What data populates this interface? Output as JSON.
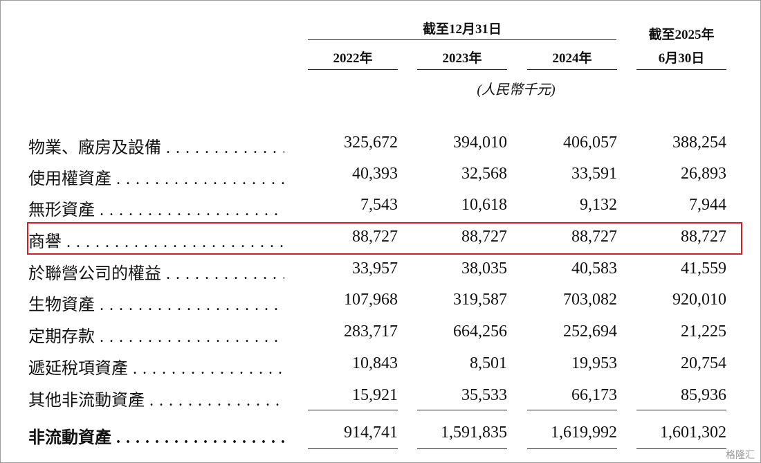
{
  "header": {
    "group": "截至12月31日",
    "years": [
      "2022年",
      "2023年",
      "2024年"
    ],
    "last_line1": "截至2025年",
    "last_line2": "6月30日",
    "unit": "(人民幣千元)"
  },
  "table": {
    "rows": [
      [
        "物業、廠房及設備",
        "325,672",
        "394,010",
        "406,057",
        "388,254"
      ],
      [
        "使用權資產",
        "40,393",
        "32,568",
        "33,591",
        "26,893"
      ],
      [
        "無形資產",
        "7,543",
        "10,618",
        "9,132",
        "7,944"
      ],
      [
        "商譽",
        "88,727",
        "88,727",
        "88,727",
        "88,727"
      ],
      [
        "於聯營公司的權益",
        "33,957",
        "38,035",
        "40,583",
        "41,559"
      ],
      [
        "生物資產",
        "107,968",
        "319,587",
        "703,082",
        "920,010"
      ],
      [
        "定期存款",
        "283,717",
        "664,256",
        "252,694",
        "21,225"
      ],
      [
        "遞延稅項資產",
        "10,843",
        "8,501",
        "19,953",
        "20,754"
      ],
      [
        "其他非流動資產",
        "15,921",
        "35,533",
        "66,173",
        "85,936"
      ],
      [
        "非流動資產",
        "914,741",
        "1,591,835",
        "1,619,992",
        "1,601,302"
      ]
    ]
  },
  "watermark": "格隆汇"
}
